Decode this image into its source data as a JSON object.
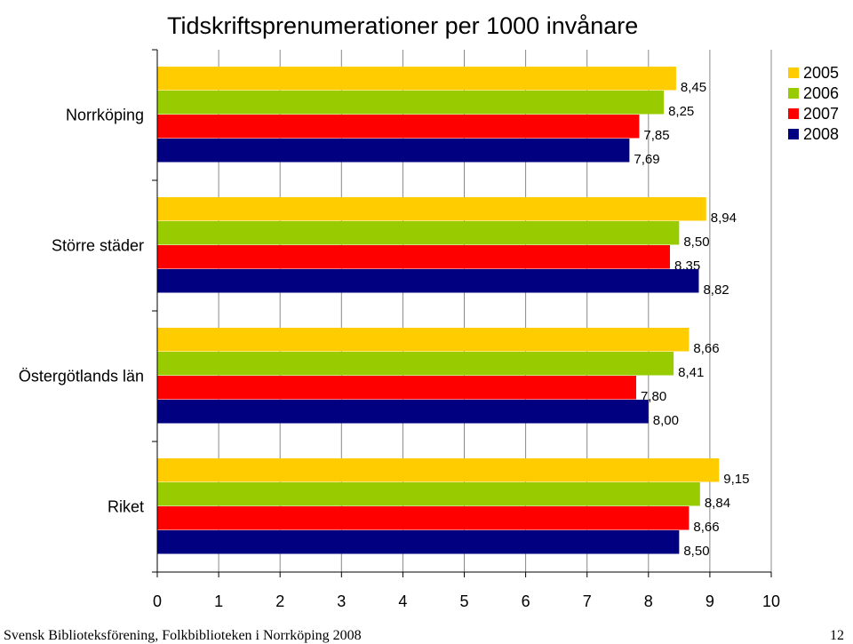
{
  "chart_data": {
    "type": "bar",
    "orientation": "horizontal",
    "title": "Tidskriftsprenumerationer per 1000 invånare",
    "categories": [
      "Norrköping",
      "Större städer",
      "Östergötlands län",
      "Riket"
    ],
    "series": [
      {
        "name": "2005",
        "color": "#FFCC00",
        "values": [
          8.45,
          8.94,
          8.66,
          9.15
        ],
        "labels": [
          "8,45",
          "8,94",
          "8,66",
          "9,15"
        ]
      },
      {
        "name": "2006",
        "color": "#99CC00",
        "values": [
          8.25,
          8.5,
          8.41,
          8.84
        ],
        "labels": [
          "8,25",
          "8,50",
          "8,41",
          "8,84"
        ]
      },
      {
        "name": "2007",
        "color": "#FF0000",
        "values": [
          7.85,
          8.35,
          7.8,
          8.66
        ],
        "labels": [
          "7,85",
          "8,35",
          "7,80",
          "8,66"
        ]
      },
      {
        "name": "2008",
        "color": "#000080",
        "values": [
          7.69,
          8.82,
          8.0,
          8.5
        ],
        "labels": [
          "7,69",
          "8,82",
          "8,00",
          "8,50"
        ]
      }
    ],
    "xlim": [
      0,
      10
    ],
    "xticks": [
      "0",
      "1",
      "2",
      "3",
      "4",
      "5",
      "6",
      "7",
      "8",
      "9",
      "10"
    ],
    "grid": true,
    "legend": "top-right"
  },
  "footer": {
    "source": "Svensk Biblioteksförening, Folkbiblioteken i Norrköping 2008",
    "page_number": "12"
  }
}
